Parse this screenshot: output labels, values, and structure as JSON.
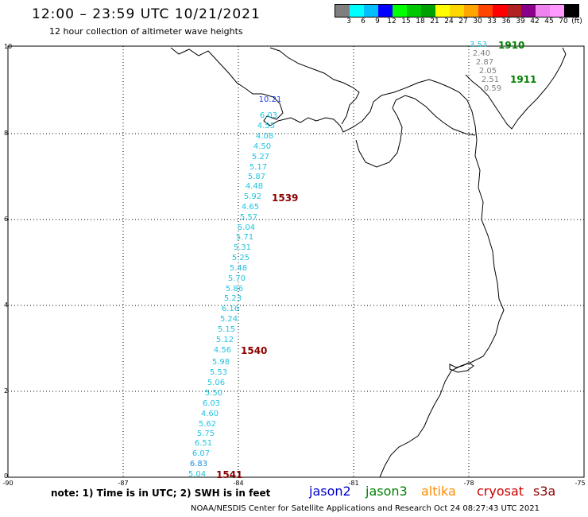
{
  "header": {
    "title": "12:00 – 23:59 UTC 10/21/2021",
    "subtitle": "12 hour collection of altimeter wave heights"
  },
  "legend": {
    "unit": "(ft)",
    "labels": [
      "3",
      "6",
      "9",
      "12",
      "15",
      "18",
      "21",
      "24",
      "27",
      "30",
      "33",
      "36",
      "39",
      "42",
      "45",
      "70"
    ],
    "colors": [
      "#7f7f7f",
      "#00ffff",
      "#00bfff",
      "#0000ff",
      "#00ff00",
      "#00c800",
      "#00a000",
      "#ffff00",
      "#ffd700",
      "#ffa500",
      "#ff4500",
      "#ff0000",
      "#b22222",
      "#8b008b",
      "#ee82ee",
      "#ff99ff",
      "#000000"
    ]
  },
  "axes": {
    "y_labels": [
      "10",
      "8",
      "6",
      "4",
      "2",
      "0"
    ],
    "x_labels": [
      "-90",
      "-87",
      "-84",
      "-81",
      "-78",
      "-75"
    ]
  },
  "passes": {
    "p1539": "1539",
    "p1540": "1540",
    "p1541": "1541",
    "p1910": "1910",
    "p1911": "1911"
  },
  "swh_values": {
    "w1": "10.21",
    "w2": "6.03",
    "w3": "4.55",
    "w4": "4.08",
    "w5": "4.50",
    "w6": "5.27",
    "w7": "5.17",
    "w8": "5.87",
    "w9": "4.48",
    "w10": "5.92",
    "w11": "4.65",
    "w12": "5.57",
    "w13": "5.04",
    "w14": "5.71",
    "w15": "5.31",
    "w16": "5.25",
    "w17": "5.48",
    "w18": "5.70",
    "w19": "5.86",
    "w20": "5.23",
    "w21": "6.16",
    "w22": "5.24",
    "w23": "5.15",
    "w24": "5.12",
    "w25": "4.56",
    "w26": "5.98",
    "w27": "5.53",
    "w28": "5.06",
    "w29": "5.50",
    "w30": "6.03",
    "w31": "4.60",
    "w32": "5.62",
    "w33": "5.75",
    "w34": "6.51",
    "w35": "6.07",
    "w36": "6.83",
    "w37": "5.04",
    "e1": "3.53",
    "e2": "2.40",
    "e3": "2.87",
    "e4": "2.05",
    "e5": "2.51",
    "e6": "0.59"
  },
  "footer": {
    "note": "note: 1) Time is in UTC; 2) SWH is in feet",
    "sat_jason2": "jason2",
    "sat_jason3": "jason3",
    "sat_altika": "altika",
    "sat_cryosat": "cryosat",
    "sat_s3a": "s3a",
    "credit": "NOAA/NESDIS Center for Satellite Applications and Research    Oct 24 08:27:43 UTC 2021"
  }
}
